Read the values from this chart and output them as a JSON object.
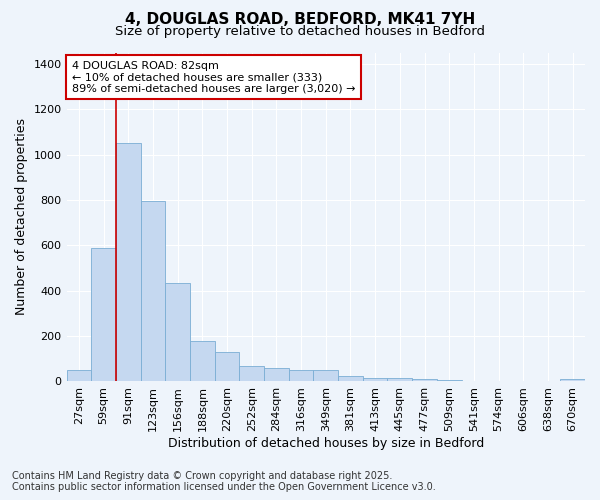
{
  "title_line1": "4, DOUGLAS ROAD, BEDFORD, MK41 7YH",
  "title_line2": "Size of property relative to detached houses in Bedford",
  "xlabel": "Distribution of detached houses by size in Bedford",
  "ylabel": "Number of detached properties",
  "bar_color": "#c5d8f0",
  "bar_edge_color": "#7aadd4",
  "background_color": "#eef4fb",
  "grid_color": "#ffffff",
  "categories": [
    "27sqm",
    "59sqm",
    "91sqm",
    "123sqm",
    "156sqm",
    "188sqm",
    "220sqm",
    "252sqm",
    "284sqm",
    "316sqm",
    "349sqm",
    "381sqm",
    "413sqm",
    "445sqm",
    "477sqm",
    "509sqm",
    "541sqm",
    "574sqm",
    "606sqm",
    "638sqm",
    "670sqm"
  ],
  "values": [
    50,
    590,
    1050,
    795,
    435,
    180,
    130,
    70,
    60,
    50,
    50,
    25,
    15,
    15,
    10,
    5,
    3,
    3,
    2,
    1,
    10
  ],
  "ylim": [
    0,
    1450
  ],
  "yticks": [
    0,
    200,
    400,
    600,
    800,
    1000,
    1200,
    1400
  ],
  "property_line_x": 1.5,
  "annotation_text": "4 DOUGLAS ROAD: 82sqm\n← 10% of detached houses are smaller (333)\n89% of semi-detached houses are larger (3,020) →",
  "annotation_box_color": "#ffffff",
  "annotation_border_color": "#cc0000",
  "footer_line1": "Contains HM Land Registry data © Crown copyright and database right 2025.",
  "footer_line2": "Contains public sector information licensed under the Open Government Licence v3.0.",
  "vline_color": "#cc0000",
  "title_fontsize": 11,
  "subtitle_fontsize": 9.5,
  "axis_label_fontsize": 9,
  "tick_fontsize": 8,
  "annotation_fontsize": 8,
  "footer_fontsize": 7
}
